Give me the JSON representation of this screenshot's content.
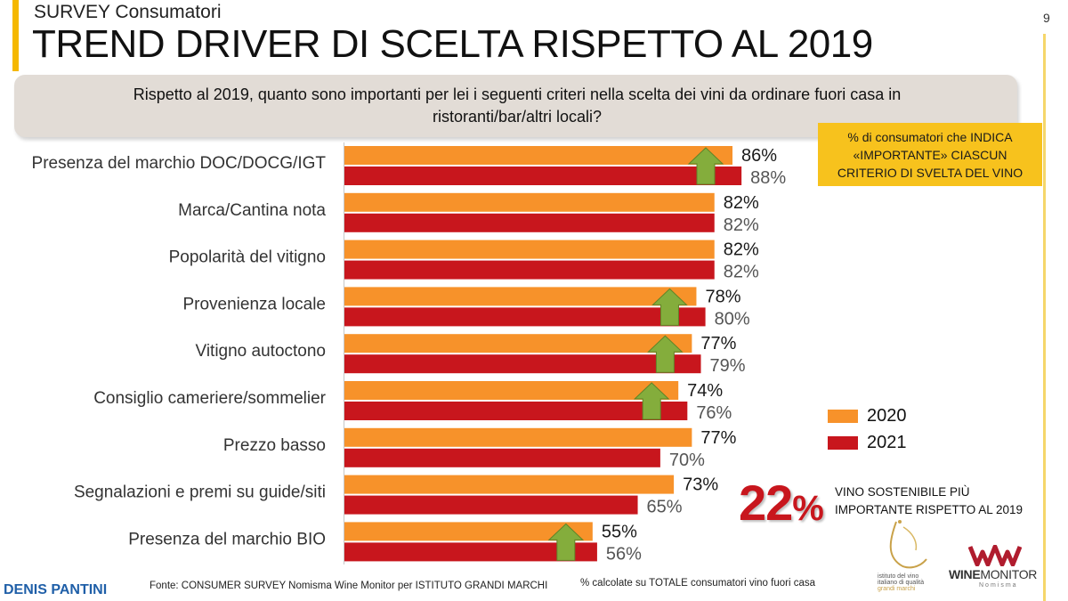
{
  "header": {
    "kicker": "SURVEY Consumatori",
    "title": "TREND DRIVER DI SCELTA RISPETTO AL 2019",
    "page_number": "9"
  },
  "question": {
    "line1": "Rispetto al 2019, quanto sono importanti per lei i seguenti criteri nella scelta dei vini da ordinare fuori casa in",
    "line2": "ristoranti/bar/altri locali?"
  },
  "note_box": {
    "line1": "% di consumatori che INDICA",
    "line2": "«IMPORTANTE» CIASCUN",
    "line3": "CRITERIO DI SVELTA DEL VINO"
  },
  "chart_data": {
    "type": "bar",
    "orientation": "horizontal",
    "categories": [
      "Presenza del marchio DOC/DOCG/IGT",
      "Marca/Cantina nota",
      "Popolarità del vitigno",
      "Provenienza locale",
      "Vitigno autoctono",
      "Consiglio cameriere/sommelier",
      "Prezzo basso",
      "Segnalazioni e premi su guide/siti",
      "Presenza del marchio BIO"
    ],
    "series": [
      {
        "name": "2020",
        "color": "#f7922a",
        "values": [
          86,
          82,
          82,
          78,
          77,
          74,
          77,
          73,
          55
        ]
      },
      {
        "name": "2021",
        "color": "#c8161d",
        "values": [
          88,
          82,
          82,
          80,
          79,
          76,
          70,
          65,
          56
        ]
      }
    ],
    "value_labels_2020": [
      "86%",
      "82%",
      "82%",
      "78%",
      "77%",
      "74%",
      "77%",
      "73%",
      "55%"
    ],
    "value_labels_2021": [
      "88%",
      "82%",
      "82%",
      "80%",
      "79%",
      "76%",
      "70%",
      "65%",
      "56%"
    ],
    "up_arrows": [
      true,
      false,
      false,
      true,
      true,
      true,
      false,
      false,
      true
    ],
    "arrow_color": "#84ad3c",
    "xlim": [
      0,
      100
    ],
    "legend_position": "right"
  },
  "highlight": {
    "value": "22",
    "unit": "%",
    "line1": "VINO SOSTENIBILE PIÙ",
    "line2": "IMPORTANTE RISPETTO AL 2019"
  },
  "footer": {
    "author": "DENIS PANTINI",
    "source": "Fonte: CONSUMER SURVEY Nomisma Wine Monitor per ISTITUTO GRANDI MARCHI",
    "note": "% calcolate su TOTALE consumatori vino fuori casa"
  },
  "logos": {
    "ivi": {
      "line1": "istituto del vino",
      "line2": "italiano di qualità",
      "line3": "grandi marchi"
    },
    "winemonitor": {
      "word_bold": "WINE",
      "word_light": "MONITOR",
      "sub": "Nomisma"
    }
  },
  "colors": {
    "accent": "#f5b800",
    "note_box": "#f7c21d",
    "highlight": "#c8161d",
    "author": "#1f5fa8"
  }
}
